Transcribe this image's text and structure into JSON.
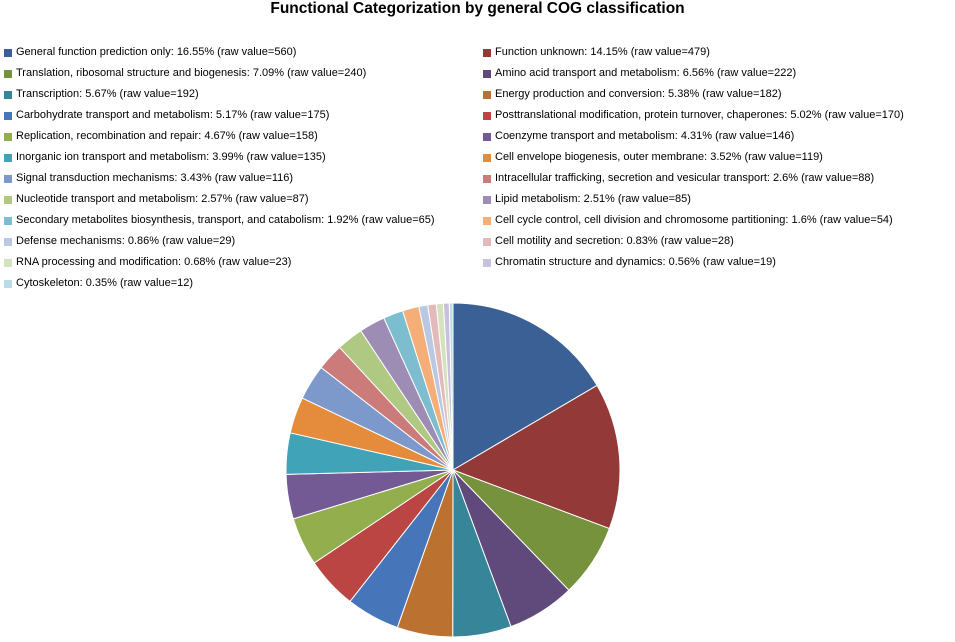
{
  "chart_data": {
    "type": "pie",
    "title": "Functional Categorization by general COG classification",
    "legend_position": "top",
    "slices": [
      {
        "label": "General function prediction only: 16.55% (raw value=560)",
        "category": "General function prediction only",
        "percent": 16.55,
        "value": 560,
        "color": "#3B6095"
      },
      {
        "label": "Function unknown: 14.15% (raw value=479)",
        "category": "Function unknown",
        "percent": 14.15,
        "value": 479,
        "color": "#933A38"
      },
      {
        "label": "Translation, ribosomal structure and biogenesis: 7.09% (raw value=240)",
        "category": "Translation, ribosomal structure and biogenesis",
        "percent": 7.09,
        "value": 240,
        "color": "#77923C"
      },
      {
        "label": "Amino acid transport and metabolism: 6.56% (raw value=222)",
        "category": "Amino acid transport and metabolism",
        "percent": 6.56,
        "value": 222,
        "color": "#604A7B"
      },
      {
        "label": "Transcription: 5.67% (raw value=192)",
        "category": "Transcription",
        "percent": 5.67,
        "value": 192,
        "color": "#368599"
      },
      {
        "label": "Energy production and conversion: 5.38% (raw value=182)",
        "category": "Energy production and conversion",
        "percent": 5.38,
        "value": 182,
        "color": "#BB7230"
      },
      {
        "label": "Carbohydrate transport and metabolism: 5.17% (raw value=175)",
        "category": "Carbohydrate transport and metabolism",
        "percent": 5.17,
        "value": 175,
        "color": "#4775B9"
      },
      {
        "label": "Posttranslational modification, protein turnover, chaperones: 5.02% (raw value=170)",
        "category": "Posttranslational modification, protein turnover, chaperones",
        "percent": 5.02,
        "value": 170,
        "color": "#BB4542"
      },
      {
        "label": "Replication, recombination and repair: 4.67% (raw value=158)",
        "category": "Replication, recombination and repair",
        "percent": 4.67,
        "value": 158,
        "color": "#92AE4D"
      },
      {
        "label": "Coenzyme transport and metabolism: 4.31% (raw value=146)",
        "category": "Coenzyme transport and metabolism",
        "percent": 4.31,
        "value": 146,
        "color": "#735A95"
      },
      {
        "label": "Inorganic ion transport and metabolism: 3.99% (raw value=135)",
        "category": "Inorganic ion transport and metabolism",
        "percent": 3.99,
        "value": 135,
        "color": "#41A3B8"
      },
      {
        "label": "Cell envelope biogenesis, outer membrane: 3.52% (raw value=119)",
        "category": "Cell envelope biogenesis, outer membrane",
        "percent": 3.52,
        "value": 119,
        "color": "#E58C3C"
      },
      {
        "label": "Signal transduction mechanisms: 3.43% (raw value=116)",
        "category": "Signal transduction mechanisms",
        "percent": 3.43,
        "value": 116,
        "color": "#7D99CC"
      },
      {
        "label": "Intracellular trafficking, secretion and vesicular transport: 2.6% (raw value=88)",
        "category": "Intracellular trafficking, secretion and vesicular transport",
        "percent": 2.6,
        "value": 88,
        "color": "#CB7B7A"
      },
      {
        "label": "Nucleotide transport and metabolism: 2.57% (raw value=87)",
        "category": "Nucleotide transport and metabolism",
        "percent": 2.57,
        "value": 87,
        "color": "#AFC882"
      },
      {
        "label": "Lipid metabolism: 2.51% (raw value=85)",
        "category": "Lipid metabolism",
        "percent": 2.51,
        "value": 85,
        "color": "#9D8DB5"
      },
      {
        "label": "Secondary metabolites biosynthesis, transport, and catabolism: 1.92% (raw value=65)",
        "category": "Secondary metabolites biosynthesis, transport, and catabolism",
        "percent": 1.92,
        "value": 65,
        "color": "#7CBDD0"
      },
      {
        "label": "Cell cycle control, cell division and chromosome partitioning: 1.6% (raw value=54)",
        "category": "Cell cycle control, cell division and chromosome partitioning",
        "percent": 1.6,
        "value": 54,
        "color": "#F5AE77"
      },
      {
        "label": "Defense mechanisms: 0.86% (raw value=29)",
        "category": "Defense mechanisms",
        "percent": 0.86,
        "value": 29,
        "color": "#B9C9E3"
      },
      {
        "label": "Cell motility and secretion: 0.83% (raw value=28)",
        "category": "Cell motility and secretion",
        "percent": 0.83,
        "value": 28,
        "color": "#E3BAB9"
      },
      {
        "label": "RNA processing and modification: 0.68% (raw value=23)",
        "category": "RNA processing and modification",
        "percent": 0.68,
        "value": 23,
        "color": "#D4E2BE"
      },
      {
        "label": "Chromatin structure and dynamics: 0.56% (raw value=19)",
        "category": "Chromatin structure and dynamics",
        "percent": 0.56,
        "value": 19,
        "color": "#C9C0D9"
      },
      {
        "label": "Cytoskeleton: 0.35% (raw value=12)",
        "category": "Cytoskeleton",
        "percent": 0.35,
        "value": 12,
        "color": "#B9DCE6"
      }
    ]
  }
}
